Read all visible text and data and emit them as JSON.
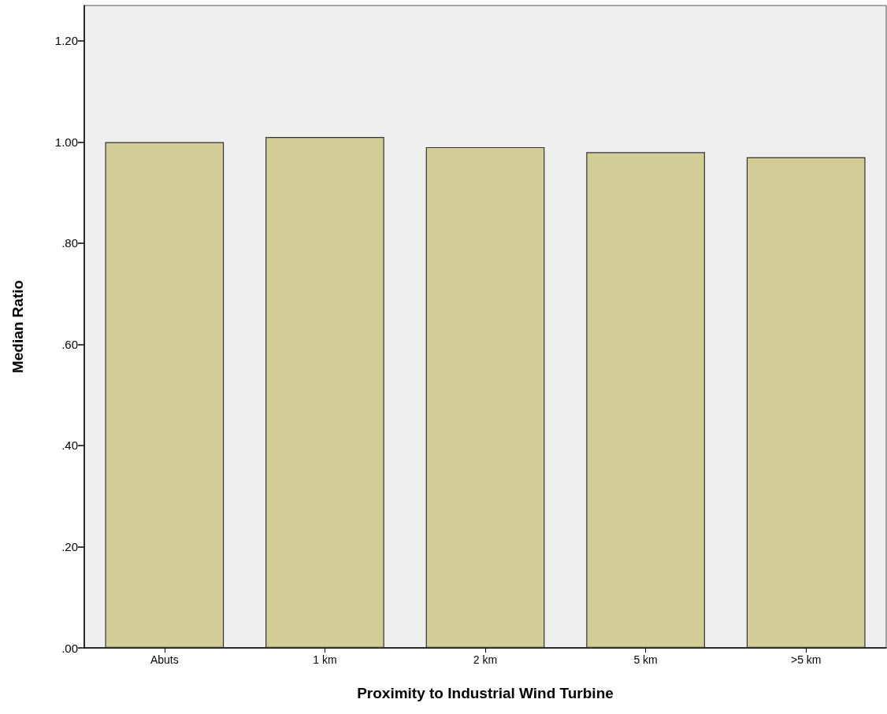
{
  "chart_data": {
    "type": "bar",
    "xlabel": "Proximity to Industrial Wind Turbine",
    "ylabel": "Median Ratio",
    "categories": [
      "Abuts",
      "1 km",
      "2 km",
      "5 km",
      ">5 km"
    ],
    "values": [
      1.0,
      1.01,
      0.99,
      0.98,
      0.97
    ],
    "color": "#d3cd98",
    "ylim": [
      0,
      1.27
    ],
    "yticks": [
      {
        "value": 0,
        "label": ".00"
      },
      {
        "value": 0.2,
        "label": ".20"
      },
      {
        "value": 0.4,
        "label": ".40"
      },
      {
        "value": 0.6,
        "label": ".60"
      },
      {
        "value": 0.8,
        "label": ".80"
      },
      {
        "value": 1.0,
        "label": "1.00"
      },
      {
        "value": 1.2,
        "label": "1.20"
      }
    ],
    "grid": false
  }
}
